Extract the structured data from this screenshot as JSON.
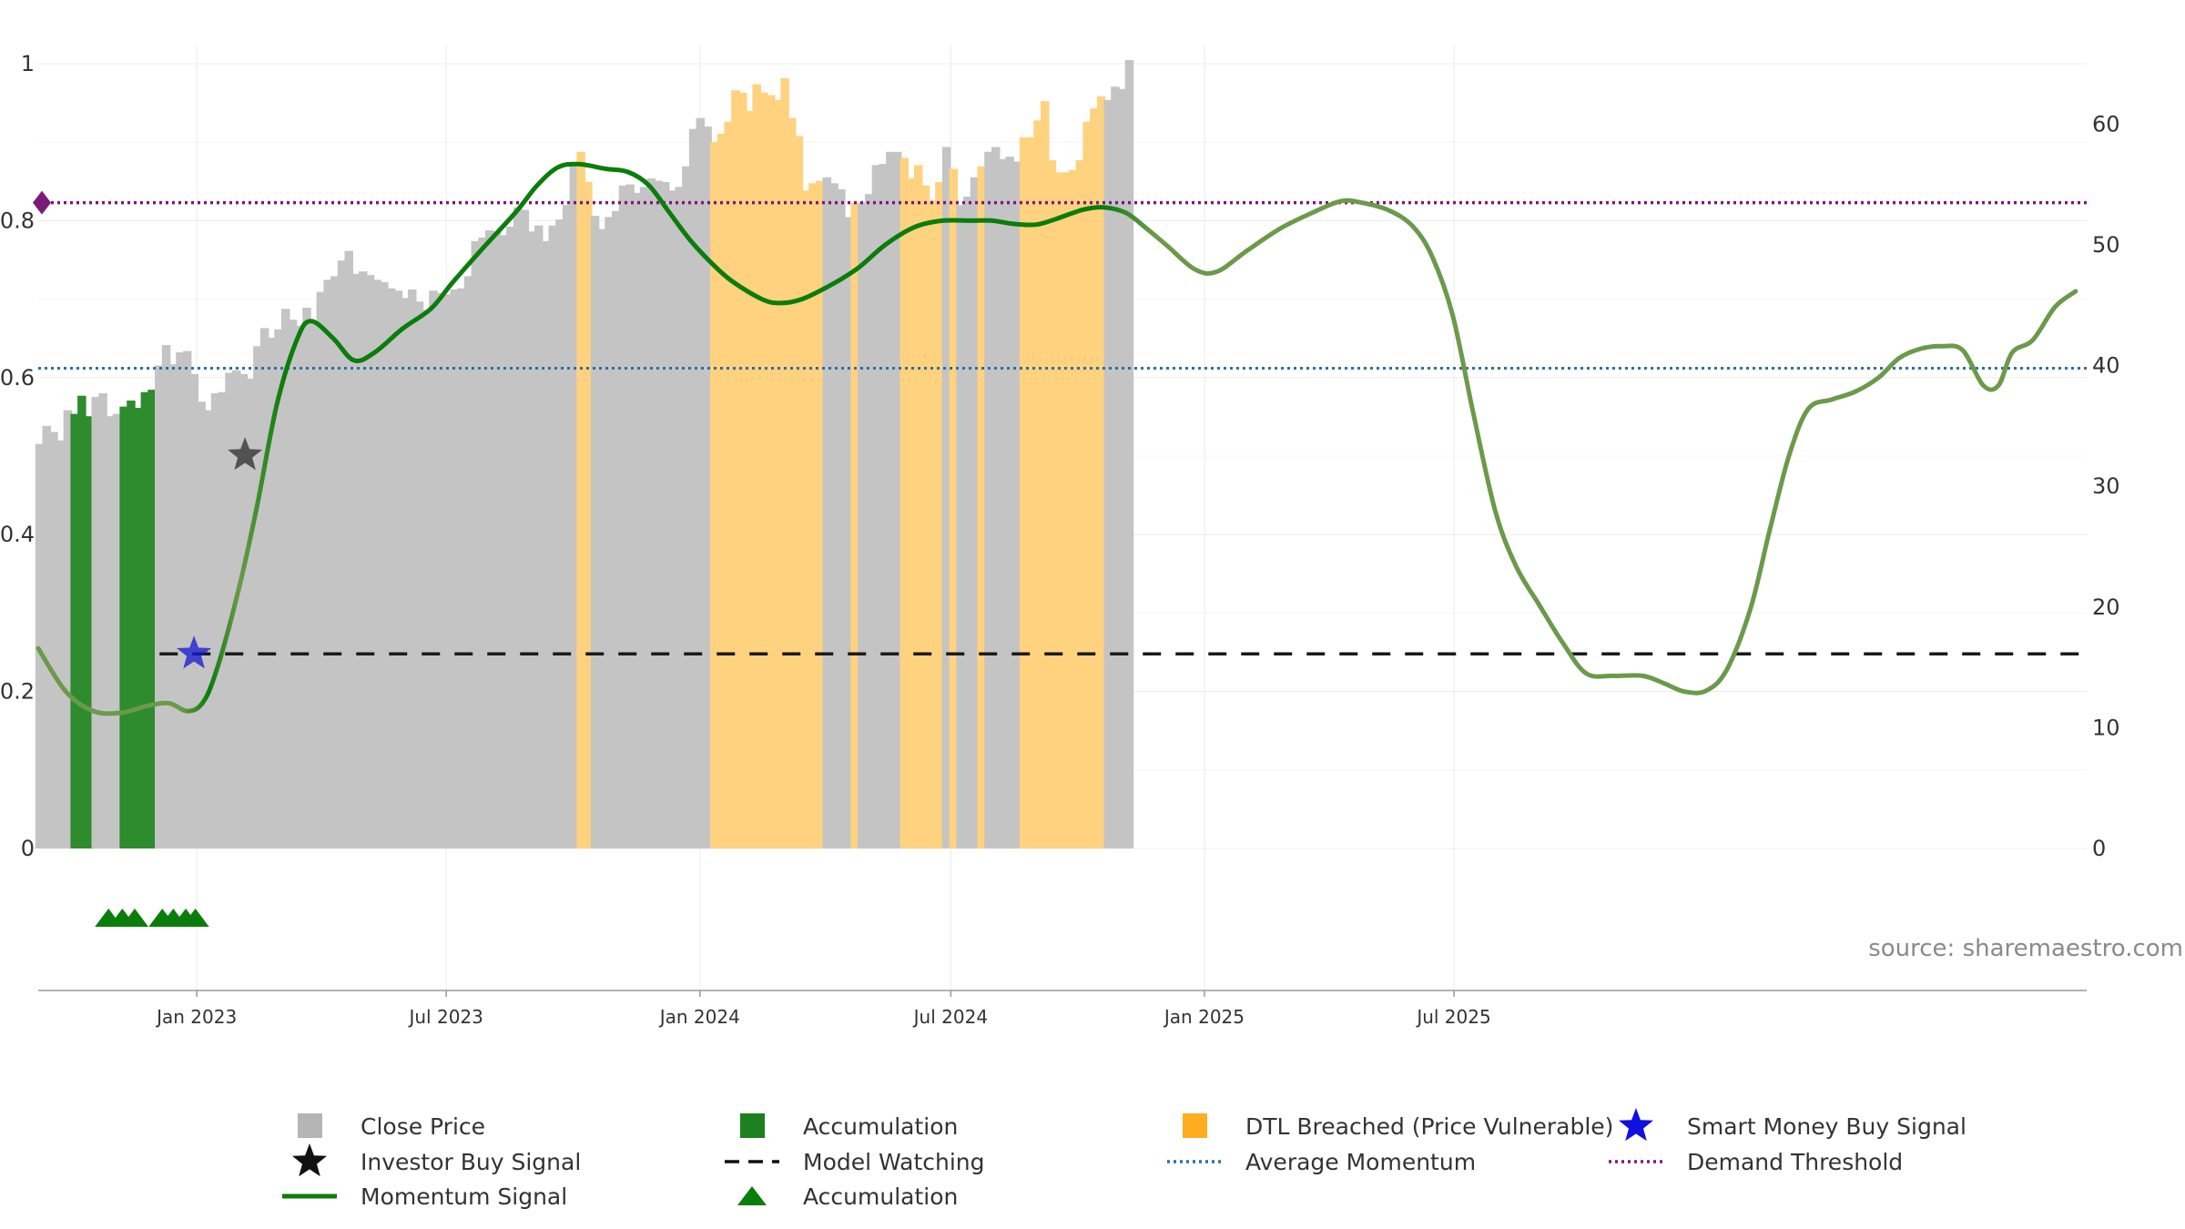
{
  "chart_data": {
    "type": "bar",
    "subtitle": "source: sharemaestro.com",
    "yaxis_left": {
      "range": [
        0,
        1
      ],
      "ticks": [
        "0",
        "0.2",
        "0.4",
        "0.6",
        "0.8",
        "1"
      ]
    },
    "yaxis_right": {
      "range": [
        0,
        65
      ],
      "ticks": [
        "0",
        "10",
        "20",
        "30",
        "40",
        "50",
        "60"
      ]
    },
    "xaxis": {
      "ticks": [
        "Jan 2023",
        "Jul 2023",
        "Jan 2024",
        "Jul 2024",
        "Jan 2025",
        "Jul 2025"
      ]
    },
    "grid": true,
    "legend_position": "bottom",
    "colors": {
      "close_price": "#c4c4c4",
      "accumulation": "#2e8b2e",
      "dtl_breached": "#ffd27f",
      "momentum": "#0a7d0a",
      "momentum_faded": "#6b9a4a",
      "average_momentum": "#2f6f9f",
      "demand_threshold": "#7a1a7a",
      "model_watching": "#1a1a1a",
      "smart_money": "#1515d0",
      "investor_buy": "#222222"
    },
    "bar_series": {
      "name": "Close Price",
      "start_date": "2022-09-09",
      "interval_days": 5.1,
      "categories_legend": {
        "G": "Close Price",
        "A": "Accumulation",
        "D": "DTL Breached (Price Vulnerable)"
      },
      "values": [
        33.5,
        35.0,
        34.5,
        33.8,
        36.3,
        36.0,
        37.5,
        35.8,
        37.4,
        37.7,
        35.8,
        36.0,
        36.6,
        37.1,
        36.5,
        37.8,
        38.0,
        40.0,
        41.7,
        40.1,
        41.1,
        41.2,
        39.3,
        37.0,
        36.3,
        37.7,
        37.8,
        39.4,
        39.6,
        39.3,
        38.9,
        41.6,
        43.1,
        42.3,
        43.0,
        44.7,
        43.8,
        43.3,
        44.8,
        43.5,
        46.1,
        47.1,
        47.4,
        48.7,
        49.5,
        47.6,
        47.8,
        47.5,
        47.1,
        46.9,
        46.4,
        46.2,
        45.6,
        46.3,
        45.3,
        44.6,
        46.2,
        46.0,
        45.9,
        46.3,
        46.4,
        47.4,
        50.3,
        50.6,
        51.2,
        51.1,
        50.8,
        51.5,
        53.1,
        52.9,
        51.1,
        51.6,
        50.3,
        51.6,
        52.1,
        53.3,
        56.8,
        57.7,
        55.2,
        52.4,
        51.3,
        52.3,
        52.8,
        54.9,
        55.0,
        54.3,
        54.8,
        55.5,
        55.3,
        55.2,
        54.5,
        54.8,
        56.5,
        59.6,
        60.5,
        59.8,
        58.5,
        59.2,
        60.2,
        62.8,
        62.6,
        61.1,
        63.3,
        62.6,
        62.4,
        62.0,
        63.8,
        60.5,
        59.0,
        54.5,
        55.1,
        55.3,
        55.6,
        55.1,
        54.6,
        52.3,
        53.5,
        53.5,
        54.2,
        56.6,
        56.7,
        57.7,
        57.7,
        57.2,
        55.5,
        56.6,
        54.9,
        53.7,
        55.2,
        58.1,
        56.3,
        53.3,
        54.0,
        55.6,
        56.5,
        57.7,
        58.1,
        57.1,
        57.3,
        56.9,
        58.9,
        58.9,
        60.3,
        61.9,
        57.0,
        56.0,
        56.0,
        56.2,
        57.0,
        60.2,
        61.3,
        62.3,
        62.0,
        63.1,
        62.9,
        65.3
      ],
      "categories": "GGGGGAAAGGGGAAAAAGGGGGGGGGGGGGGGGGGGGGGGGGGGGGGGGGGGGGGGGGGGGGGGGGGGGGGGGGGGGDDGGGGGGGGGGGGGGGGGDDDDDDDDDDDDDDDDGGGGDGGGGGGDDDDDDGDGGGDGGGGGDDDDDDDDDDDDGGGGGDDDDDDD"
    },
    "momentum_series": {
      "name": "Momentum Signal",
      "axis": "left",
      "points": [
        [
          "2022-09-08",
          0.255
        ],
        [
          "2022-09-28",
          0.2
        ],
        [
          "2022-10-18",
          0.175
        ],
        [
          "2022-11-07",
          0.173
        ],
        [
          "2022-11-27",
          0.182
        ],
        [
          "2022-12-12",
          0.185
        ],
        [
          "2022-12-25",
          0.175
        ],
        [
          "2023-01-05",
          0.185
        ],
        [
          "2023-01-15",
          0.225
        ],
        [
          "2023-01-30",
          0.32
        ],
        [
          "2023-02-13",
          0.43
        ],
        [
          "2023-02-28",
          0.565
        ],
        [
          "2023-03-15",
          0.65
        ],
        [
          "2023-03-25",
          0.672
        ],
        [
          "2023-04-10",
          0.65
        ],
        [
          "2023-04-25",
          0.622
        ],
        [
          "2023-05-10",
          0.632
        ],
        [
          "2023-05-30",
          0.662
        ],
        [
          "2023-06-20",
          0.688
        ],
        [
          "2023-07-05",
          0.72
        ],
        [
          "2023-07-25",
          0.76
        ],
        [
          "2023-08-20",
          0.81
        ],
        [
          "2023-09-05",
          0.845
        ],
        [
          "2023-09-20",
          0.868
        ],
        [
          "2023-10-05",
          0.872
        ],
        [
          "2023-10-25",
          0.866
        ],
        [
          "2023-11-10",
          0.862
        ],
        [
          "2023-11-25",
          0.845
        ],
        [
          "2023-12-10",
          0.81
        ],
        [
          "2023-12-25",
          0.775
        ],
        [
          "2024-01-10",
          0.745
        ],
        [
          "2024-01-25",
          0.722
        ],
        [
          "2024-02-15",
          0.7
        ],
        [
          "2024-02-28",
          0.695
        ],
        [
          "2024-03-15",
          0.7
        ],
        [
          "2024-04-05",
          0.718
        ],
        [
          "2024-04-25",
          0.74
        ],
        [
          "2024-05-15",
          0.77
        ],
        [
          "2024-06-05",
          0.792
        ],
        [
          "2024-06-25",
          0.8
        ],
        [
          "2024-07-15",
          0.8
        ],
        [
          "2024-07-31",
          0.8
        ],
        [
          "2024-08-15",
          0.796
        ],
        [
          "2024-09-01",
          0.795
        ],
        [
          "2024-09-15",
          0.802
        ],
        [
          "2024-10-05",
          0.814
        ],
        [
          "2024-10-20",
          0.817
        ],
        [
          "2024-11-05",
          0.81
        ],
        [
          "2024-11-20",
          0.79
        ],
        [
          "2024-12-05",
          0.768
        ],
        [
          "2024-12-25",
          0.738
        ],
        [
          "2025-01-10",
          0.735
        ],
        [
          "2025-02-01",
          0.762
        ],
        [
          "2025-02-25",
          0.79
        ],
        [
          "2025-03-20",
          0.81
        ],
        [
          "2025-04-10",
          0.825
        ],
        [
          "2025-04-25",
          0.823
        ],
        [
          "2025-05-15",
          0.813
        ],
        [
          "2025-06-01",
          0.793
        ],
        [
          "2025-06-15",
          0.755
        ],
        [
          "2025-06-30",
          0.68
        ],
        [
          "2025-07-15",
          0.555
        ],
        [
          "2025-07-31",
          0.43
        ],
        [
          "2025-08-15",
          0.36
        ],
        [
          "2025-09-01",
          0.31
        ],
        [
          "2025-09-18",
          0.262
        ],
        [
          "2025-10-05",
          0.223
        ],
        [
          "2025-10-25",
          0.22
        ],
        [
          "2025-11-15",
          0.22
        ],
        [
          "2025-12-01",
          0.21
        ],
        [
          "2025-12-15",
          0.2
        ],
        [
          "2025-12-31",
          0.201
        ],
        [
          "2026-01-15",
          0.228
        ],
        [
          "2026-02-01",
          0.305
        ],
        [
          "2026-02-15",
          0.405
        ],
        [
          "2026-03-01",
          0.5
        ],
        [
          "2026-03-15",
          0.56
        ],
        [
          "2026-04-01",
          0.572
        ],
        [
          "2026-04-18",
          0.582
        ],
        [
          "2026-05-05",
          0.6
        ],
        [
          "2026-05-20",
          0.625
        ],
        [
          "2026-06-05",
          0.637
        ],
        [
          "2026-06-20",
          0.64
        ],
        [
          "2026-07-05",
          0.635
        ],
        [
          "2026-07-20",
          0.59
        ],
        [
          "2026-07-31",
          0.59
        ],
        [
          "2026-08-10",
          0.632
        ],
        [
          "2026-08-25",
          0.648
        ],
        [
          "2026-09-10",
          0.69
        ],
        [
          "2026-09-25",
          0.71
        ]
      ]
    },
    "reference_lines": {
      "average_momentum": {
        "name": "Average Momentum",
        "value": 0.612,
        "axis": "left"
      },
      "demand_threshold": {
        "name": "Demand Threshold",
        "value": 0.823,
        "axis": "left"
      },
      "model_watching": {
        "name": "Model Watching",
        "value": 0.248,
        "axis": "left",
        "start": "2022-12-05"
      }
    },
    "markers": {
      "smart_money_buy_signal": [
        {
          "date": "2022-12-30",
          "value": 0.248
        }
      ],
      "investor_buy_signal": [
        {
          "date": "2023-02-05",
          "value": 0.501
        }
      ],
      "accumulation_triangles": [
        "2022-10-29",
        "2022-11-08",
        "2022-11-17",
        "2022-12-07",
        "2022-12-15",
        "2022-12-24",
        "2022-12-31"
      ]
    }
  },
  "legend": [
    {
      "key": "close",
      "label": "Close Price",
      "marker": "square",
      "color": "#b5b5b5"
    },
    {
      "key": "accum_bar",
      "label": "Accumulation",
      "marker": "square",
      "color": "#1e7f1e"
    },
    {
      "key": "dtl",
      "label": "DTL Breached (Price Vulnerable)",
      "marker": "square",
      "color": "#ffad1f"
    },
    {
      "key": "smart",
      "label": "Smart Money Buy Signal",
      "marker": "star",
      "color": "#1010e0"
    },
    {
      "key": "investor",
      "label": "Investor Buy Signal",
      "marker": "star",
      "color": "#111111"
    },
    {
      "key": "watching",
      "label": "Model Watching",
      "marker": "dash",
      "color": "#111111"
    },
    {
      "key": "avgmom",
      "label": "Average Momentum",
      "marker": "dot",
      "color": "#2f6f9f"
    },
    {
      "key": "demand",
      "label": "Demand Threshold",
      "marker": "dot",
      "color": "#7a1a7a"
    },
    {
      "key": "momentum",
      "label": "Momentum Signal",
      "marker": "line",
      "color": "#0a7d0a"
    },
    {
      "key": "accum_tri",
      "label": "Accumulation",
      "marker": "triangle",
      "color": "#0a7d0a"
    }
  ]
}
